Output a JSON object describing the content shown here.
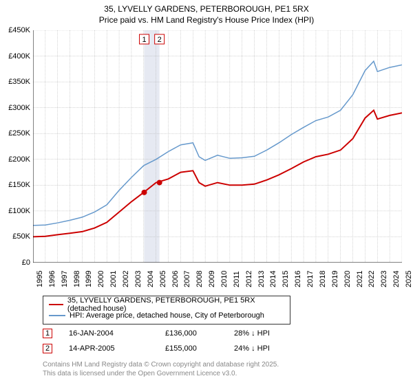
{
  "title_line1": "35, LYVELLY GARDENS, PETERBOROUGH, PE1 5RX",
  "title_line2": "Price paid vs. HM Land Registry's House Price Index (HPI)",
  "chart": {
    "type": "line",
    "background_color": "#ffffff",
    "grid_color": "#aaaaaa",
    "highlight_color": "#e6e9f2",
    "x_start_year": 1995,
    "x_end_year": 2025,
    "ylim": [
      0,
      450000
    ],
    "ytick_step": 50000,
    "y_ticks": [
      "£0",
      "£50K",
      "£100K",
      "£150K",
      "£200K",
      "£250K",
      "£300K",
      "£350K",
      "£400K",
      "£450K"
    ],
    "x_ticks": [
      "1995",
      "1996",
      "1997",
      "1998",
      "1999",
      "2000",
      "2001",
      "2002",
      "2003",
      "2004",
      "2005",
      "2006",
      "2007",
      "2008",
      "2009",
      "2010",
      "2011",
      "2012",
      "2013",
      "2014",
      "2015",
      "2016",
      "2017",
      "2018",
      "2019",
      "2020",
      "2021",
      "2022",
      "2023",
      "2024",
      "2025"
    ],
    "series_red": {
      "label": "35, LYVELLY GARDENS, PETERBOROUGH, PE1 5RX (detached house)",
      "color": "#cc0000",
      "line_width": 2,
      "points": [
        [
          1995,
          50000
        ],
        [
          1996,
          51000
        ],
        [
          1997,
          54000
        ],
        [
          1998,
          57000
        ],
        [
          1999,
          60000
        ],
        [
          2000,
          67000
        ],
        [
          2001,
          78000
        ],
        [
          2002,
          98000
        ],
        [
          2003,
          118000
        ],
        [
          2004,
          136000
        ],
        [
          2005,
          155000
        ],
        [
          2006,
          162000
        ],
        [
          2007,
          175000
        ],
        [
          2008,
          178000
        ],
        [
          2008.5,
          155000
        ],
        [
          2009,
          148000
        ],
        [
          2010,
          155000
        ],
        [
          2011,
          150000
        ],
        [
          2012,
          150000
        ],
        [
          2013,
          152000
        ],
        [
          2014,
          160000
        ],
        [
          2015,
          170000
        ],
        [
          2016,
          182000
        ],
        [
          2017,
          195000
        ],
        [
          2018,
          205000
        ],
        [
          2019,
          210000
        ],
        [
          2020,
          218000
        ],
        [
          2021,
          240000
        ],
        [
          2022,
          280000
        ],
        [
          2022.7,
          295000
        ],
        [
          2023,
          278000
        ],
        [
          2024,
          285000
        ],
        [
          2025,
          290000
        ]
      ]
    },
    "series_blue": {
      "label": "HPI: Average price, detached house, City of Peterborough",
      "color": "#6699cc",
      "line_width": 1.5,
      "points": [
        [
          1995,
          72000
        ],
        [
          1996,
          73000
        ],
        [
          1997,
          77000
        ],
        [
          1998,
          82000
        ],
        [
          1999,
          88000
        ],
        [
          2000,
          98000
        ],
        [
          2001,
          112000
        ],
        [
          2002,
          140000
        ],
        [
          2003,
          165000
        ],
        [
          2004,
          188000
        ],
        [
          2005,
          200000
        ],
        [
          2006,
          215000
        ],
        [
          2007,
          228000
        ],
        [
          2008,
          232000
        ],
        [
          2008.5,
          205000
        ],
        [
          2009,
          198000
        ],
        [
          2010,
          208000
        ],
        [
          2011,
          202000
        ],
        [
          2012,
          203000
        ],
        [
          2013,
          206000
        ],
        [
          2014,
          218000
        ],
        [
          2015,
          232000
        ],
        [
          2016,
          248000
        ],
        [
          2017,
          262000
        ],
        [
          2018,
          275000
        ],
        [
          2019,
          282000
        ],
        [
          2020,
          295000
        ],
        [
          2021,
          325000
        ],
        [
          2022,
          372000
        ],
        [
          2022.7,
          390000
        ],
        [
          2023,
          370000
        ],
        [
          2024,
          378000
        ],
        [
          2025,
          383000
        ]
      ]
    },
    "sale_markers": [
      {
        "num": "1",
        "year": 2004.04,
        "price": 136000,
        "date": "16-JAN-2004",
        "price_label": "£136,000",
        "diff": "28% ↓ HPI"
      },
      {
        "num": "2",
        "year": 2005.28,
        "price": 155000,
        "date": "14-APR-2005",
        "price_label": "£155,000",
        "diff": "24% ↓ HPI"
      }
    ]
  },
  "legend": {
    "item1": "35, LYVELLY GARDENS, PETERBOROUGH, PE1 5RX (detached house)",
    "item2": "HPI: Average price, detached house, City of Peterborough"
  },
  "footer_line1": "Contains HM Land Registry data © Crown copyright and database right 2025.",
  "footer_line2": "This data is licensed under the Open Government Licence v3.0."
}
